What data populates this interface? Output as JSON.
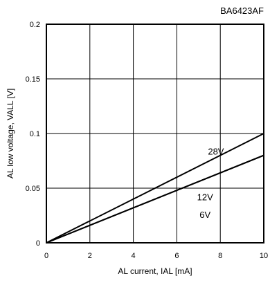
{
  "chart_data": {
    "type": "line",
    "title": "",
    "part_number": "BA6423AF",
    "xlabel": "AL current, IAL [mA]",
    "ylabel": "AL low voltage, VALL [V]",
    "xlim": [
      0,
      10
    ],
    "ylim": [
      0,
      0.2
    ],
    "x_ticks": [
      0,
      2,
      4,
      6,
      8,
      10
    ],
    "x_tick_labels": [
      "0",
      "2",
      "4",
      "6",
      "8",
      "10"
    ],
    "y_ticks": [
      0,
      0.05,
      0.1,
      0.15,
      0.2
    ],
    "y_tick_labels": [
      "0",
      "0.05",
      "0.1",
      "0.15",
      "0.2"
    ],
    "grid": true,
    "series": [
      {
        "name": "28V",
        "x": [
          0,
          10
        ],
        "y": [
          0,
          0.1
        ],
        "label_at": [
          7.8,
          0.084
        ]
      },
      {
        "name": "12V",
        "x": [
          0,
          10
        ],
        "y": [
          0,
          0.08
        ],
        "label_at": [
          7.3,
          0.042
        ]
      },
      {
        "name": "6V",
        "x": [
          0,
          10
        ],
        "y": [
          0,
          0.08
        ],
        "label_at": [
          7.3,
          0.026
        ]
      }
    ],
    "colors": {
      "line": "#000000",
      "grid": "#000000",
      "frame": "#000000"
    }
  }
}
